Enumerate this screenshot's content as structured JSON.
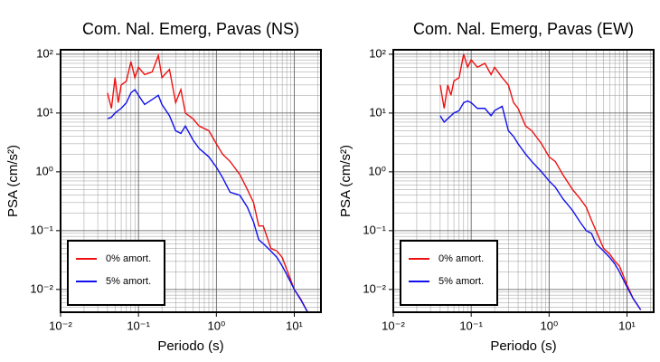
{
  "chart_data": [
    {
      "type": "line",
      "title": "Com. Nal. Emerg, Pavas (NS)",
      "xlabel": "Periodo (s)",
      "ylabel": "PSA (cm/s²)",
      "log_x": true,
      "log_y": true,
      "grid": true,
      "legend": "lower left",
      "xlim": [
        0.01,
        22
      ],
      "ylim": [
        0.0041,
        119
      ],
      "xticks": [
        {
          "value": 0.01,
          "label": "10⁻²"
        },
        {
          "value": 0.1,
          "label": "10⁻¹"
        },
        {
          "value": 1,
          "label": "10⁰"
        },
        {
          "value": 10,
          "label": "10¹"
        }
      ],
      "yticks": [
        {
          "value": 0.01,
          "label": "10⁻²"
        },
        {
          "value": 0.1,
          "label": "10⁻¹"
        },
        {
          "value": 1,
          "label": "10⁰"
        },
        {
          "value": 10,
          "label": "10¹"
        },
        {
          "value": 100,
          "label": "10²"
        }
      ],
      "x": [
        0.04,
        0.045,
        0.05,
        0.055,
        0.06,
        0.07,
        0.08,
        0.09,
        0.1,
        0.12,
        0.15,
        0.18,
        0.2,
        0.25,
        0.3,
        0.35,
        0.4,
        0.5,
        0.6,
        0.8,
        1,
        1.2,
        1.5,
        2,
        2.5,
        3,
        3.5,
        4,
        5,
        6,
        7,
        8,
        10,
        12,
        15
      ],
      "series": [
        {
          "name": "0% amort.",
          "color": "#ee1111",
          "values": [
            22,
            12,
            40,
            15,
            30,
            35,
            75,
            40,
            60,
            45,
            50,
            95,
            40,
            55,
            15,
            25,
            10,
            8,
            6,
            5,
            3,
            2,
            1.5,
            0.9,
            0.5,
            0.3,
            0.12,
            0.12,
            0.05,
            0.045,
            0.035,
            0.022,
            0.01,
            0.007,
            0.004
          ]
        },
        {
          "name": "5% amort.",
          "color": "#1111ee",
          "values": [
            8,
            8.5,
            10,
            11,
            12,
            15,
            22,
            25,
            20,
            14,
            17,
            20,
            14,
            9,
            5,
            4.5,
            6,
            3.5,
            2.5,
            1.8,
            1.2,
            0.8,
            0.45,
            0.4,
            0.25,
            0.14,
            0.07,
            0.06,
            0.045,
            0.035,
            0.025,
            0.018,
            0.01,
            0.0068,
            0.004
          ]
        }
      ]
    },
    {
      "type": "line",
      "title": "Com. Nal. Emerg, Pavas (EW)",
      "xlabel": "Periodo (s)",
      "ylabel": "PSA (cm/s²)",
      "log_x": true,
      "log_y": true,
      "grid": true,
      "legend": "lower left",
      "xlim": [
        0.01,
        22
      ],
      "ylim": [
        0.0041,
        119
      ],
      "xticks": [
        {
          "value": 0.01,
          "label": "10⁻²"
        },
        {
          "value": 0.1,
          "label": "10⁻¹"
        },
        {
          "value": 1,
          "label": "10⁰"
        },
        {
          "value": 10,
          "label": "10¹"
        }
      ],
      "yticks": [
        {
          "value": 0.01,
          "label": "10⁻²"
        },
        {
          "value": 0.1,
          "label": "10⁻¹"
        },
        {
          "value": 1,
          "label": "10⁰"
        },
        {
          "value": 10,
          "label": "10¹"
        },
        {
          "value": 100,
          "label": "10²"
        }
      ],
      "x": [
        0.04,
        0.045,
        0.05,
        0.055,
        0.06,
        0.07,
        0.08,
        0.09,
        0.1,
        0.12,
        0.15,
        0.18,
        0.2,
        0.25,
        0.3,
        0.35,
        0.4,
        0.5,
        0.6,
        0.8,
        1,
        1.2,
        1.5,
        2,
        2.5,
        3,
        3.5,
        4,
        5,
        6,
        7,
        8,
        10,
        12,
        15
      ],
      "series": [
        {
          "name": "0% amort.",
          "color": "#ee1111",
          "values": [
            30,
            12,
            30,
            20,
            35,
            40,
            100,
            60,
            80,
            60,
            70,
            45,
            60,
            40,
            30,
            15,
            12,
            6,
            5,
            3,
            1.8,
            1.5,
            0.9,
            0.5,
            0.35,
            0.25,
            0.15,
            0.1,
            0.05,
            0.04,
            0.03,
            0.025,
            0.012,
            0.007,
            0.0045
          ]
        },
        {
          "name": "5% amort.",
          "color": "#1111ee",
          "values": [
            9,
            7,
            8,
            9,
            10,
            11,
            15,
            16,
            15,
            12,
            12,
            9,
            11,
            13,
            5,
            4,
            3,
            2,
            1.5,
            1,
            0.7,
            0.55,
            0.35,
            0.22,
            0.14,
            0.1,
            0.09,
            0.06,
            0.045,
            0.035,
            0.027,
            0.02,
            0.011,
            0.007,
            0.0045
          ]
        }
      ]
    }
  ]
}
